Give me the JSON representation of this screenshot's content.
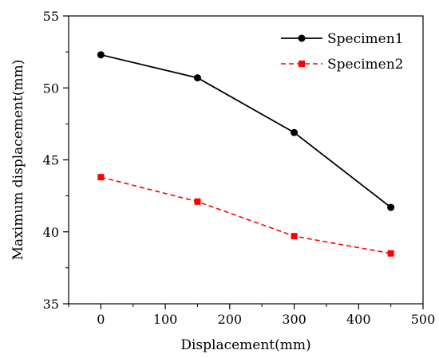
{
  "chart_data": {
    "type": "line",
    "title": "",
    "xlabel": "Displacement(mm)",
    "ylabel": "Maximum displacement(mm)",
    "xlim": [
      -50,
      500
    ],
    "ylim": [
      35,
      55
    ],
    "x_ticks": [
      0,
      100,
      200,
      300,
      400,
      500
    ],
    "y_ticks": [
      35,
      40,
      45,
      50,
      55
    ],
    "x_tick_labels": [
      "0",
      "100",
      "200",
      "300",
      "400",
      "500"
    ],
    "y_tick_labels": [
      "35",
      "40",
      "45",
      "50",
      "55"
    ],
    "x_minor_step": 50,
    "y_minor_step": 2.5,
    "grid": false,
    "legend_position": "top-right",
    "x": [
      0,
      150,
      300,
      450
    ],
    "series": [
      {
        "name": "Specimen1",
        "values": [
          52.3,
          50.7,
          46.9,
          41.7
        ],
        "color": "#000000",
        "marker": "circle",
        "line_style": "solid"
      },
      {
        "name": "Specimen2",
        "values": [
          43.8,
          42.1,
          39.7,
          38.5
        ],
        "color": "#ff0000",
        "marker": "square",
        "line_style": "dashed"
      }
    ]
  }
}
